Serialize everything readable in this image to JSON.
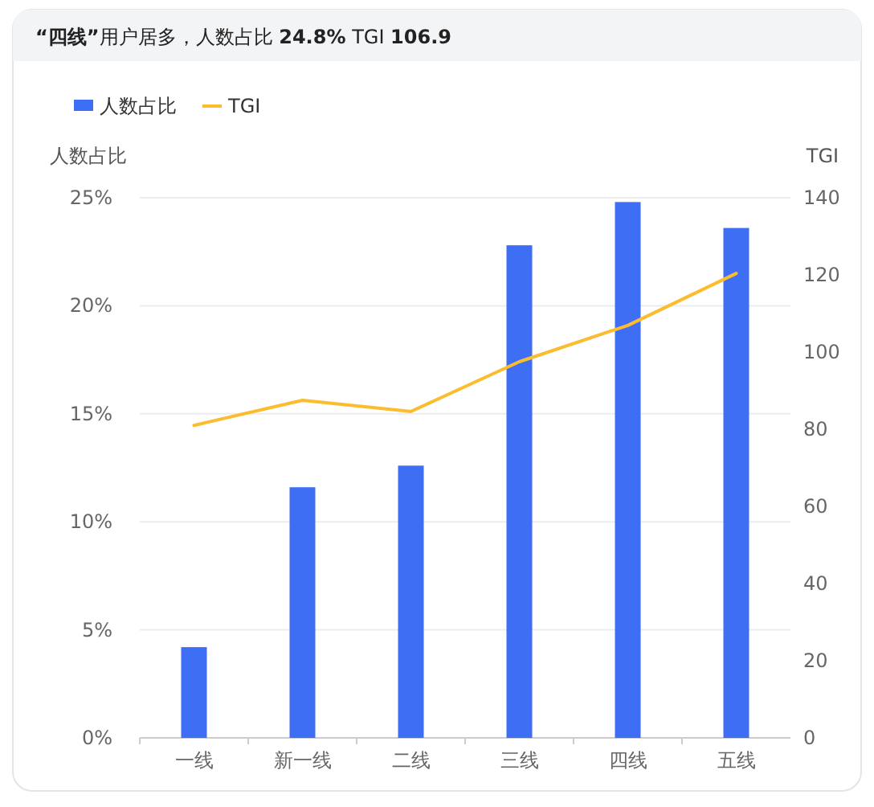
{
  "chart_data": {
    "type": "bar",
    "title": "**“四线”**用户居多，人数占比 **24.8%** TGI **106.9**",
    "ylabel": "人数占比",
    "y2label": "TGI",
    "categories": [
      "一线",
      "新一线",
      "二线",
      "三线",
      "四线",
      "五线"
    ],
    "series": [
      {
        "name": "人数占比",
        "color": "#3e6ef3",
        "values": [
          4.2,
          11.6,
          12.6,
          22.8,
          24.8,
          23.6
        ]
      },
      {
        "name": "TGI",
        "type": "line",
        "axis": "y2",
        "color": "#fbbc2e",
        "values": [
          81,
          87.5,
          84.6,
          97.5,
          106.9,
          120.4
        ]
      }
    ],
    "ylim": [
      0,
      25
    ],
    "yticks": [
      {
        "value": 0,
        "label": "0%"
      },
      {
        "value": 5,
        "label": "5%"
      },
      {
        "value": 10,
        "label": "10%"
      },
      {
        "value": 15,
        "label": "15%"
      },
      {
        "value": 20,
        "label": "20%"
      },
      {
        "value": 25,
        "label": "25%"
      }
    ],
    "y2lim": [
      0,
      140
    ],
    "y2ticks": [
      0,
      20,
      40,
      60,
      80,
      100,
      120,
      140
    ],
    "grid": "y",
    "legend": "top left"
  }
}
